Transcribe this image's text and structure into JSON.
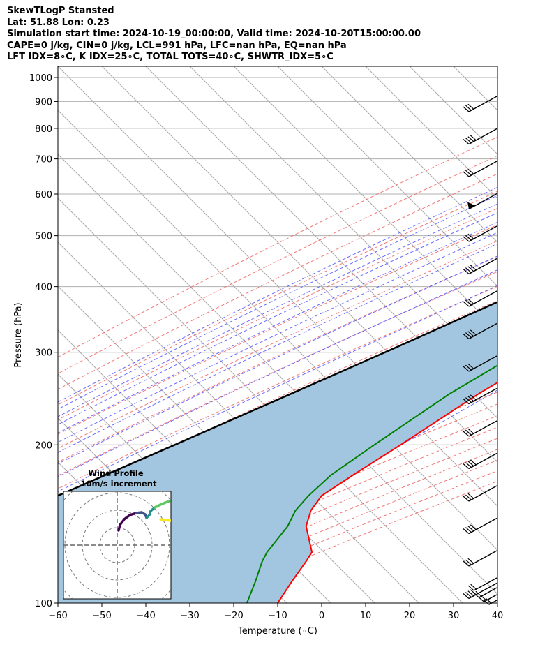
{
  "header": {
    "line1": "SkewTLogP Stansted",
    "line2": "Lat: 51.88   Lon: 0.23",
    "line3": "Simulation start time: 2024-10-19_00:00:00, Valid time: 2024-10-20T15:00:00.00",
    "line4": "CAPE=0 j/kg, CIN=0 j/kg, LCL=991 hPa, LFC=nan hPa, EQ=nan hPa",
    "line5": "LFT IDX=8∘C, K IDX=25∘C, TOTAL TOTS=40∘C, SHWTR_IDX=5∘C"
  },
  "chart_data": {
    "type": "line",
    "subtype": "skew-t log-p",
    "xlabel": "Temperature (∘C)",
    "ylabel": "Pressure (hPa)",
    "xlim": [
      -60,
      40
    ],
    "ylim": [
      1050,
      100
    ],
    "yscale": "log",
    "x_ticks": [
      "−60",
      "−50",
      "−40",
      "−30",
      "−20",
      "−10",
      "0",
      "10",
      "20",
      "30",
      "40"
    ],
    "y_ticks": [
      "1000",
      "900",
      "800",
      "700",
      "600",
      "500",
      "400",
      "300",
      "200",
      "100"
    ],
    "grid": true,
    "colors": {
      "temperature": "#ff0000",
      "dewpoint": "#008000",
      "parcel": "#000000",
      "cape_fill": "#a3c6e0",
      "dry_adiabat": "#f06060",
      "moist_adiabat": "#5050ff",
      "mixing_ratio": "#9040c0",
      "isotherm": "#aaaaaa"
    },
    "series": [
      {
        "pressure": [
          1000,
          975,
          950,
          925,
          900,
          850,
          800,
          750,
          700,
          650,
          600,
          550,
          500,
          450,
          400,
          350,
          300,
          250,
          200,
          175,
          160,
          150,
          140,
          125,
          120,
          110,
          100
        ],
        "values": [
          15.5,
          16.0,
          16.3,
          16.0,
          15.5,
          15.0,
          14.5,
          13.5,
          12.5,
          13.0,
          13.0,
          12.0,
          9.8,
          7.5,
          4.5,
          0.3,
          -5.4,
          -11.9,
          -18.0,
          -22.0,
          -24.4,
          -23.5,
          -21.0,
          -13.8,
          -13.0,
          -11.7,
          -10.0
        ]
      },
      {
        "pressure": [
          1000,
          950,
          925,
          900,
          850,
          800,
          750,
          700,
          650,
          600,
          550,
          500,
          450,
          400,
          350,
          300,
          250,
          200,
          175,
          160,
          150,
          140,
          125,
          120,
          110,
          100
        ],
        "values": [
          15.5,
          16.0,
          16.0,
          15.0,
          14.0,
          13.0,
          10.0,
          9.0,
          10.5,
          9.0,
          5.0,
          0.0,
          -4.5,
          -6.0,
          -9.0,
          -12.0,
          -18.5,
          -24.0,
          -27.0,
          -27.4,
          -27.0,
          -25.2,
          -24.0,
          -23.0,
          -20.0,
          -17.0
        ]
      },
      {
        "pressure": [
          1000,
          950,
          900,
          850,
          800,
          750,
          700,
          650,
          600,
          550,
          500,
          450,
          400,
          350,
          300,
          250,
          200,
          150,
          100
        ],
        "values": [
          15.3,
          14.2,
          13.0,
          11.4,
          9.7,
          7.6,
          5.0,
          1.9,
          -1.7,
          -6.0,
          -11.2,
          -17.2,
          -24.2,
          -32.7,
          -42.6,
          -54.6,
          -69.4,
          -88.8,
          -117.0
        ]
      }
    ]
  },
  "inset": {
    "title": "Wind Profile",
    "subtitle": "10m/s increment",
    "colors": [
      "#440154",
      "#3b528b",
      "#21918c",
      "#5ec962",
      "#fde725"
    ]
  }
}
